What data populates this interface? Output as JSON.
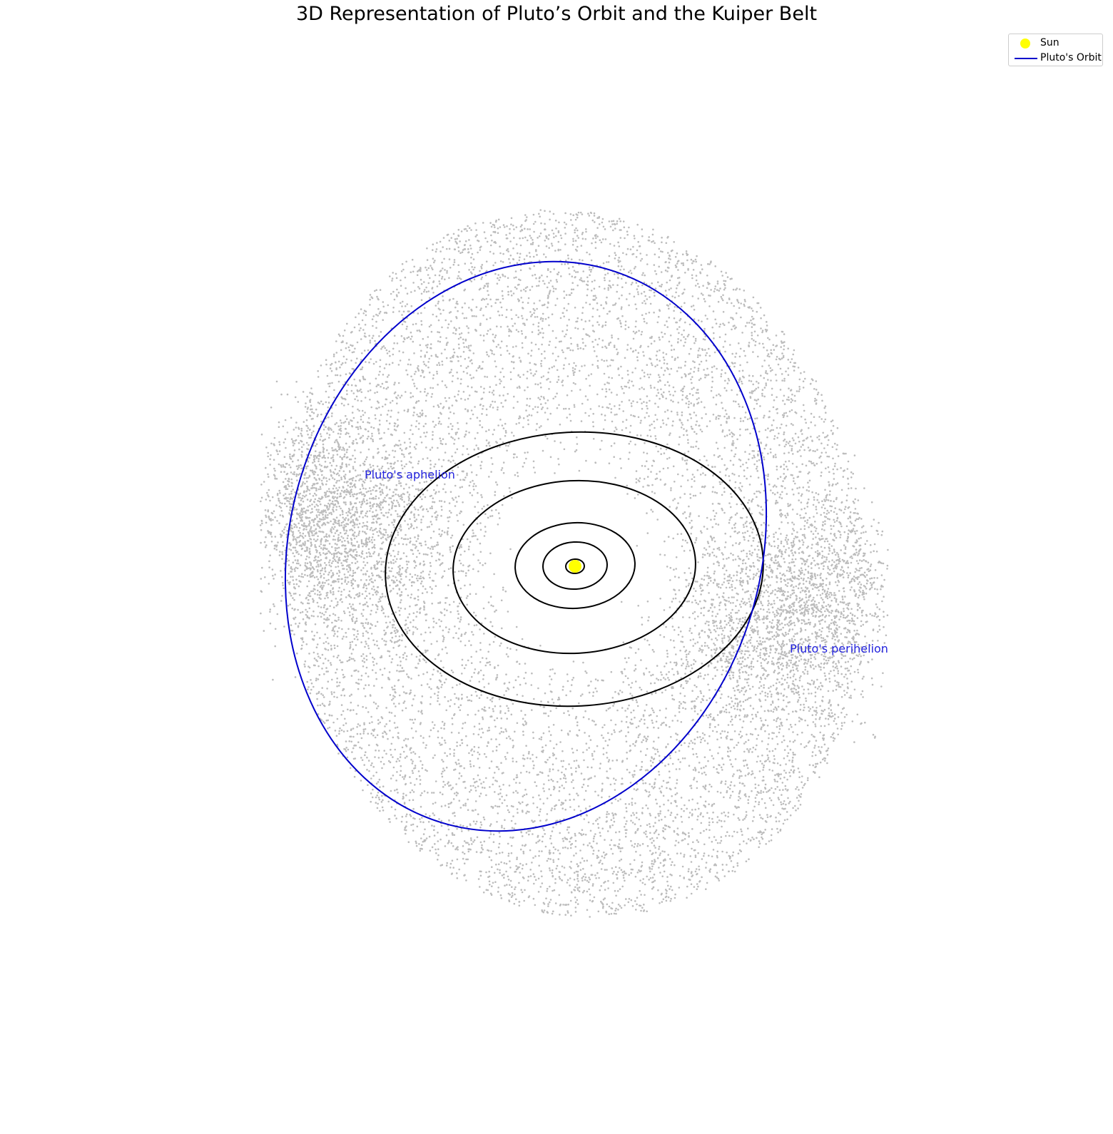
{
  "chart_data": {
    "type": "scatter",
    "title": "3D Representation of Pluto’s Orbit and the Kuiper Belt",
    "axes_visible": false,
    "legend": {
      "placement": "top-right",
      "entries": [
        {
          "label": "Sun",
          "marker": "circle",
          "color": "#ffff00"
        },
        {
          "label": "Pluto's Orbit",
          "marker": "line",
          "color": "#0000cc"
        }
      ]
    },
    "annotations": [
      {
        "text": "Pluto's aphelion",
        "color": "#2222dd"
      },
      {
        "text": "Pluto's perihelion",
        "color": "#2222dd"
      }
    ],
    "colors": {
      "sun": "#ffff00",
      "pluto_orbit": "#0000cc",
      "planet_orbits": "#000000",
      "kuiper_belt": "#b0b0b0"
    }
  }
}
